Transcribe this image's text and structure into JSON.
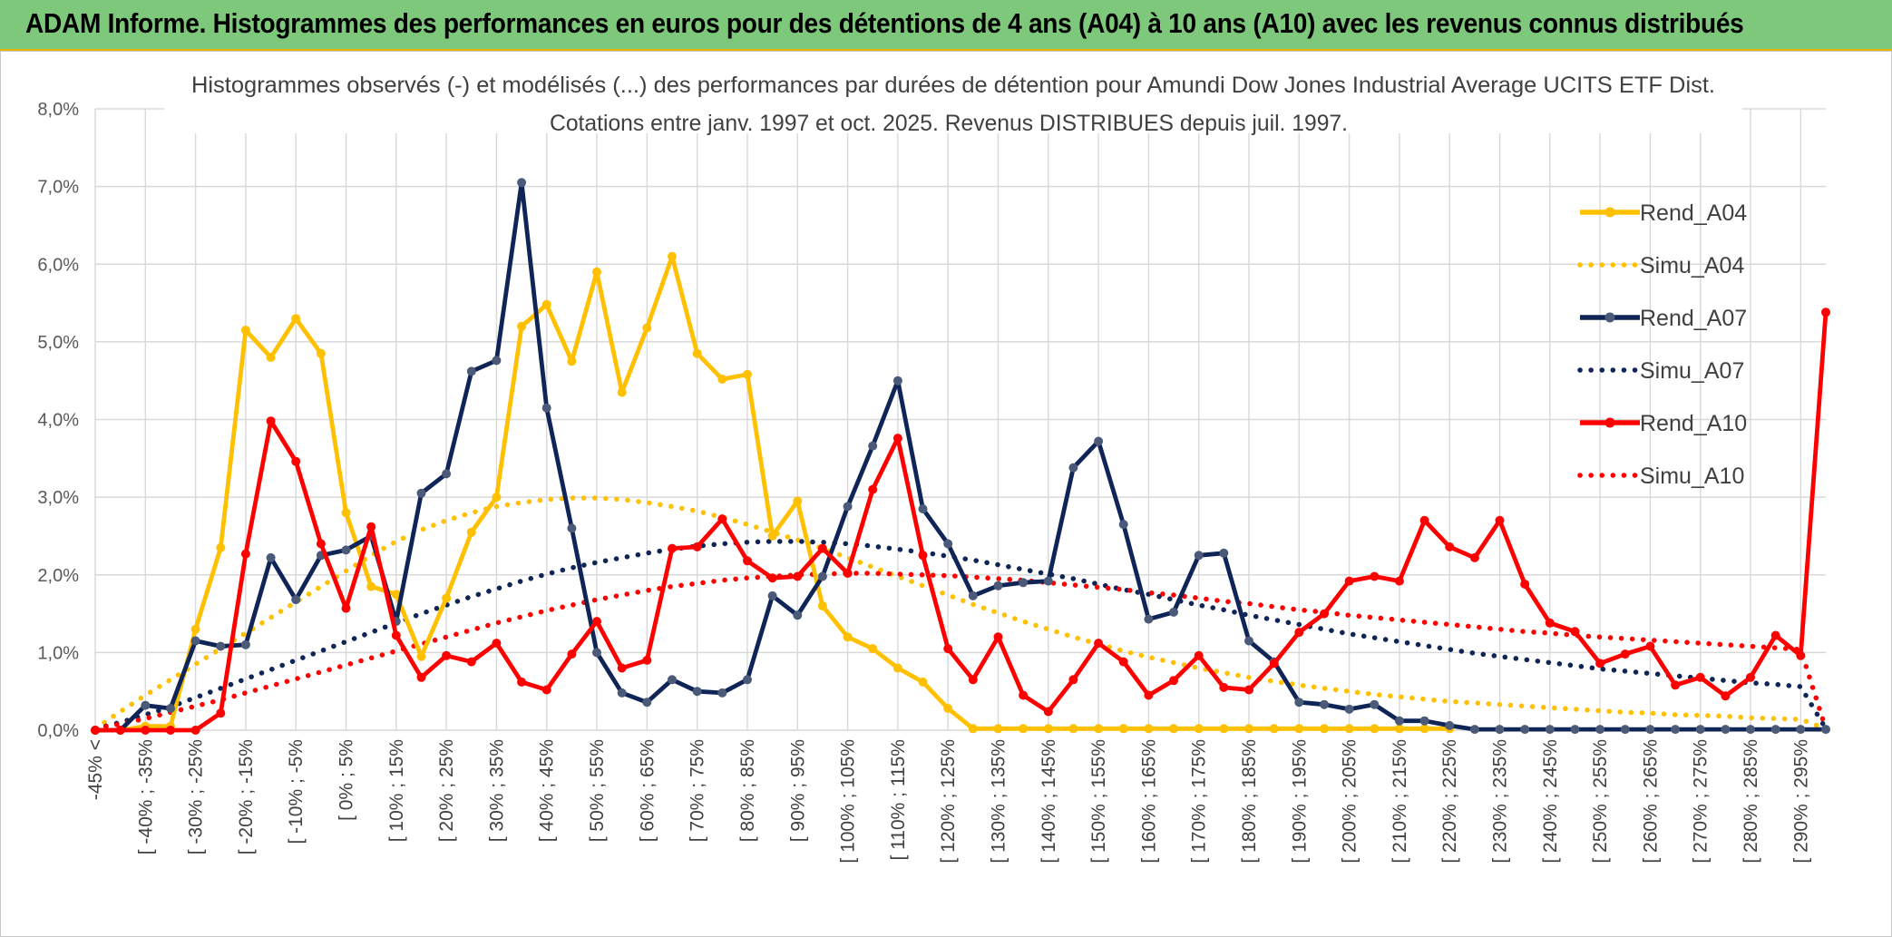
{
  "banner": {
    "title": "ADAM Informe. Histogrammes des performances en euros pour des détentions de 4 ans (A04) à 10 ans (A10) avec les revenus connus distribués"
  },
  "colors": {
    "banner_bg": "#7dc87b",
    "rend_a04": "#ffc000",
    "rend_a07": "#0f2557",
    "rend_a10": "#ff0000"
  },
  "chart_data": {
    "type": "line",
    "title": "Histogrammes observés (-) et modélisés (...) des performances par durées de détention pour Amundi Dow Jones Industrial Average UCITS ETF Dist.",
    "subtitle": "Cotations entre janv. 1997 et oct. 2025. Revenus DISTRIBUES depuis juil. 1997.",
    "xlabel": "",
    "ylabel": "",
    "ylim": [
      0,
      8
    ],
    "yticks": [
      "0,0%",
      "1,0%",
      "2,0%",
      "3,0%",
      "4,0%",
      "5,0%",
      "6,0%",
      "7,0%",
      "8,0%"
    ],
    "legend_position": "right",
    "x_tick_labels": [
      "-45% <",
      "[ -40% ; -35%",
      "[ -30% ; -25%",
      "[ -20% ; -15%",
      "[ -10% ; -5%",
      "[ 0% ; 5%",
      "[ 10% ; 15%",
      "[ 20% ; 25%",
      "[ 30% ; 35%",
      "[ 40% ; 45%",
      "[ 50% ; 55%",
      "[ 60% ; 65%",
      "[ 70% ; 75%",
      "[ 80% ; 85%",
      "[ 90% ; 95%",
      "[ 100% ; 105%",
      "[ 110% ; 115%",
      "[ 120% ; 125%",
      "[ 130% ; 135%",
      "[ 140% ; 145%",
      "[ 150% ; 155%",
      "[ 160% ; 165%",
      "[ 170% ; 175%",
      "[ 180% ; 185%",
      "[ 190% ; 195%",
      "[ 200% ; 205%",
      "[ 210% ; 215%",
      "[ 220% ; 225%",
      "[ 230% ; 235%",
      "[ 240% ; 245%",
      "[ 250% ; 255%",
      "[ 260% ; 265%",
      "[ 270% ; 275%",
      "[ 280% ; 285%",
      "[ 290% ; 295%"
    ],
    "bins_count": 70,
    "series": [
      {
        "name": "Rend_A04",
        "style": "solid",
        "marker": true,
        "color": "#ffc000",
        "values": [
          0,
          0,
          0.05,
          0.05,
          1.3,
          2.35,
          5.15,
          4.8,
          5.3,
          4.85,
          2.8,
          1.85,
          1.75,
          0.95,
          1.7,
          2.55,
          3.0,
          5.2,
          5.48,
          4.75,
          5.9,
          4.35,
          5.18,
          6.1,
          4.85,
          4.52,
          4.58,
          2.5,
          2.95,
          1.6,
          1.2,
          1.05,
          0.8,
          0.62,
          0.28,
          0.02,
          0.02,
          0.02,
          0.02,
          0.02,
          0.02,
          0.02,
          0.02,
          0.02,
          0.02,
          0.02,
          0.02,
          0.02,
          0.02,
          0.02,
          0.02,
          0.02,
          0.02,
          0.02,
          0.02,
          null,
          null,
          null,
          null,
          null,
          null,
          null,
          null,
          null,
          null,
          null,
          null,
          null,
          null,
          null
        ]
      },
      {
        "name": "Simu_A04",
        "style": "dotted",
        "marker": false,
        "color": "#ffc000",
        "values": [
          0.02,
          0.24,
          0.45,
          0.65,
          0.85,
          1.05,
          1.25,
          1.45,
          1.65,
          1.85,
          2.05,
          2.25,
          2.43,
          2.58,
          2.7,
          2.8,
          2.88,
          2.93,
          2.97,
          2.99,
          2.99,
          2.97,
          2.93,
          2.88,
          2.82,
          2.74,
          2.65,
          2.55,
          2.45,
          2.34,
          2.22,
          2.1,
          1.98,
          1.86,
          1.74,
          1.62,
          1.51,
          1.4,
          1.3,
          1.2,
          1.11,
          1.02,
          0.94,
          0.87,
          0.8,
          0.74,
          0.68,
          0.63,
          0.58,
          0.54,
          0.5,
          0.46,
          0.43,
          0.4,
          0.37,
          0.35,
          0.33,
          0.31,
          0.29,
          0.27,
          0.25,
          0.23,
          0.22,
          0.2,
          0.19,
          0.18,
          0.16,
          0.15,
          0.14,
          0.02
        ]
      },
      {
        "name": "Rend_A07",
        "style": "solid",
        "marker": true,
        "color": "#0f2557",
        "values": [
          0,
          0,
          0.32,
          0.28,
          1.15,
          1.08,
          1.1,
          2.22,
          1.68,
          2.25,
          2.32,
          2.5,
          1.4,
          3.05,
          3.3,
          4.62,
          4.76,
          7.05,
          4.15,
          2.6,
          1.0,
          0.48,
          0.36,
          0.65,
          0.5,
          0.48,
          0.65,
          1.73,
          1.48,
          1.98,
          2.88,
          3.66,
          4.5,
          2.85,
          2.4,
          1.73,
          1.86,
          1.9,
          1.92,
          3.38,
          3.72,
          2.65,
          1.43,
          1.52,
          2.25,
          2.28,
          1.15,
          0.88,
          0.36,
          0.33,
          0.27,
          0.33,
          0.12,
          0.12,
          0.06,
          0.01,
          0.01,
          0.01,
          0.01,
          0.01,
          0.01,
          0.01,
          0.01,
          0.01,
          0.01,
          0.01,
          0.01,
          0.01,
          0.01,
          0.01
        ]
      },
      {
        "name": "Simu_A07",
        "style": "dotted",
        "marker": false,
        "color": "#0f2557",
        "values": [
          0.02,
          0.1,
          0.2,
          0.3,
          0.42,
          0.54,
          0.66,
          0.78,
          0.9,
          1.02,
          1.14,
          1.26,
          1.38,
          1.5,
          1.61,
          1.72,
          1.82,
          1.92,
          2.01,
          2.09,
          2.16,
          2.22,
          2.28,
          2.33,
          2.37,
          2.4,
          2.42,
          2.43,
          2.43,
          2.42,
          2.4,
          2.37,
          2.33,
          2.29,
          2.24,
          2.19,
          2.13,
          2.07,
          2.01,
          1.95,
          1.88,
          1.81,
          1.75,
          1.68,
          1.61,
          1.55,
          1.48,
          1.42,
          1.36,
          1.3,
          1.24,
          1.19,
          1.14,
          1.09,
          1.04,
          0.99,
          0.95,
          0.91,
          0.87,
          0.83,
          0.79,
          0.76,
          0.73,
          0.7,
          0.67,
          0.64,
          0.61,
          0.59,
          0.56,
          0.02
        ]
      },
      {
        "name": "Rend_A10",
        "style": "solid",
        "marker": true,
        "color": "#ff0000",
        "values": [
          0,
          0,
          0,
          0,
          0,
          0.22,
          2.27,
          3.98,
          3.46,
          2.4,
          1.57,
          2.62,
          1.22,
          0.68,
          0.96,
          0.88,
          1.12,
          0.62,
          0.52,
          0.98,
          1.4,
          0.8,
          0.9,
          2.34,
          2.36,
          2.72,
          2.18,
          1.96,
          1.98,
          2.34,
          2.02,
          3.1,
          3.76,
          2.25,
          1.05,
          0.65,
          1.2,
          0.45,
          0.24,
          0.65,
          1.12,
          0.88,
          0.45,
          0.64,
          0.96,
          0.55,
          0.52,
          0.86,
          1.26,
          1.5,
          1.92,
          1.98,
          1.92,
          2.7,
          2.36,
          2.22,
          2.7,
          1.88,
          1.38,
          1.27,
          0.86,
          0.98,
          1.08,
          0.58,
          0.68,
          0.44,
          0.68,
          1.22,
          0.96,
          5.38
        ]
      },
      {
        "name": "Simu_A10",
        "style": "dotted",
        "marker": false,
        "color": "#ff0000",
        "values": [
          0.02,
          0.08,
          0.15,
          0.23,
          0.31,
          0.39,
          0.48,
          0.57,
          0.66,
          0.75,
          0.84,
          0.93,
          1.02,
          1.11,
          1.2,
          1.29,
          1.38,
          1.46,
          1.54,
          1.61,
          1.68,
          1.74,
          1.8,
          1.85,
          1.89,
          1.93,
          1.96,
          1.98,
          2.0,
          2.01,
          2.02,
          2.02,
          2.01,
          2.0,
          1.99,
          1.97,
          1.95,
          1.93,
          1.9,
          1.87,
          1.84,
          1.81,
          1.77,
          1.74,
          1.7,
          1.66,
          1.63,
          1.59,
          1.55,
          1.52,
          1.48,
          1.45,
          1.42,
          1.39,
          1.36,
          1.33,
          1.3,
          1.27,
          1.25,
          1.22,
          1.2,
          1.18,
          1.16,
          1.14,
          1.12,
          1.1,
          1.08,
          1.06,
          1.04,
          0.02
        ]
      }
    ]
  }
}
